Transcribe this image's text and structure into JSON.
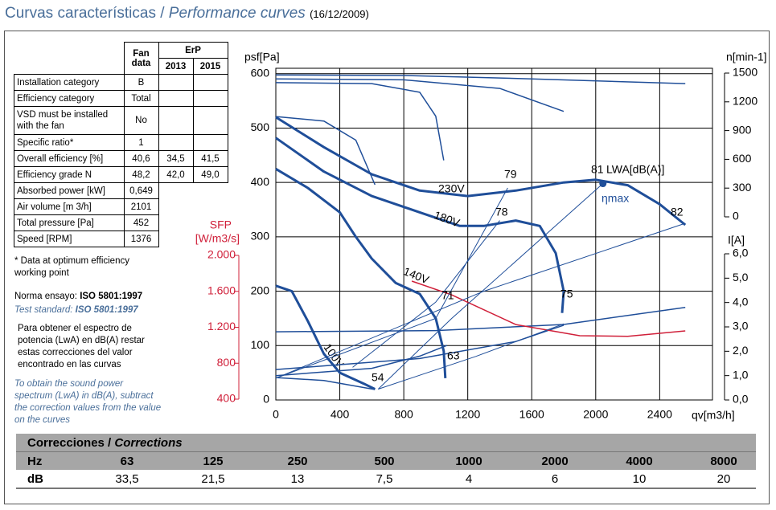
{
  "header": {
    "title_es": "Curvas características /",
    "title_en": "Performance curves",
    "date": "(16/12/2009)"
  },
  "spec_table": {
    "fan_data": "Fan data",
    "erp": "ErP",
    "year_2013": "2013",
    "year_2015": "2015",
    "rows": [
      [
        "Installation category",
        "B"
      ],
      [
        "Efficiency category",
        "Total"
      ],
      [
        "VSD must be installed with the fan",
        "No"
      ],
      [
        "Specific ratio*",
        "1"
      ],
      [
        "Overall efficiency [%]",
        "40,6",
        "34,5",
        "41,5"
      ],
      [
        "Efficiency grade N",
        "48,2",
        "42,0",
        "49,0"
      ],
      [
        "Absorbed power [kW]",
        "0,649"
      ],
      [
        "Air volume [m 3/h]",
        "2101"
      ],
      [
        "Total pressure [Pa]",
        "452"
      ],
      [
        "Speed [RPM]",
        "1376"
      ]
    ]
  },
  "notes": {
    "optimum": "* Data at optimum efficiency working point",
    "norma_label": "Norma ensayo:",
    "norma": "ISO 5801:1997",
    "standard_label": "Test standard:",
    "standard": "ISO 5801:1997",
    "es": "Para obtener el espectro de potencia (LwA) en dB(A) restar estas correcciones del valor encontrado en las curvas",
    "en": "To obtain the sound power spectrum (LwA) in dB(A), subtract the correction values from the value on the curves"
  },
  "corrections": {
    "title_es": "Correcciones /",
    "title_en": "Corrections",
    "hz_label": "Hz",
    "db_label": "dB",
    "hz": [
      "63",
      "125",
      "250",
      "500",
      "1000",
      "2000",
      "4000",
      "8000"
    ],
    "db": [
      "33,5",
      "21,5",
      "13",
      "7,5",
      "4",
      "6",
      "10",
      "20"
    ]
  },
  "chart_data": {
    "type": "line",
    "x_label": "qv[m3/h]",
    "y_label": "psf[Pa]",
    "xlim": [
      0,
      2730
    ],
    "xticks": [
      0,
      400,
      800,
      1200,
      1600,
      2000,
      2400
    ],
    "ylim": [
      0,
      610
    ],
    "yticks": [
      0,
      100,
      200,
      300,
      400,
      500,
      600
    ],
    "grid": true,
    "speed_axis": {
      "label": "n[min-1]",
      "lim": [
        0,
        1500
      ],
      "ticks": [
        0,
        300,
        600,
        900,
        1200,
        1500
      ]
    },
    "current_axis": {
      "label": "I[A]",
      "lim": [
        0,
        6
      ],
      "ticks": [
        {
          "value": 0,
          "label": "0,0"
        },
        {
          "value": 1,
          "label": "1,0"
        },
        {
          "value": 2,
          "label": "2,0"
        },
        {
          "value": 3,
          "label": "3,0"
        },
        {
          "value": 4,
          "label": "4,0"
        },
        {
          "value": 5,
          "label": "5,0"
        },
        {
          "value": 6,
          "label": "6,0"
        }
      ]
    },
    "sfp_axis": {
      "label": "SFP",
      "unit": "[W/m3/s]",
      "lim": [
        400,
        2000
      ],
      "ticks": [
        400,
        800,
        {
          "value": 1200,
          "label": "1.200"
        },
        {
          "value": 1600,
          "label": "1.600"
        },
        {
          "value": 2000,
          "label": "2.000"
        }
      ]
    },
    "series": [
      {
        "name": "230V",
        "color": "#1f4e99",
        "axis": "y",
        "width": 3,
        "x": [
          0,
          300,
          600,
          900,
          1200,
          1500,
          1800,
          2000,
          2200,
          2400,
          2560
        ],
        "values": [
          520,
          465,
          415,
          385,
          375,
          385,
          400,
          405,
          395,
          360,
          322
        ]
      },
      {
        "name": "180V",
        "color": "#1f4e99",
        "axis": "y",
        "width": 3,
        "x": [
          0,
          300,
          600,
          900,
          1150,
          1300,
          1500,
          1650,
          1750,
          1800,
          1790
        ],
        "values": [
          482,
          420,
          375,
          345,
          320,
          320,
          330,
          320,
          270,
          200,
          160
        ]
      },
      {
        "name": "140V",
        "color": "#1f4e99",
        "axis": "y",
        "width": 3,
        "x": [
          0,
          200,
          400,
          500,
          600,
          750,
          900,
          1000,
          1050,
          1060
        ],
        "values": [
          425,
          390,
          345,
          300,
          260,
          215,
          195,
          150,
          90,
          40
        ]
      },
      {
        "name": "100V",
        "color": "#1f4e99",
        "axis": "y",
        "width": 3,
        "x": [
          0,
          100,
          200,
          300,
          400,
          550,
          620
        ],
        "values": [
          210,
          200,
          145,
          85,
          50,
          30,
          20
        ]
      },
      {
        "color": "#1f4e99",
        "axis": "n",
        "width": 1.5,
        "x": [
          0,
          800,
          1600,
          2560
        ],
        "values": [
          1480,
          1475,
          1440,
          1390
        ]
      },
      {
        "color": "#1f4e99",
        "axis": "n",
        "width": 1.5,
        "x": [
          0,
          800,
          1400,
          1800
        ],
        "values": [
          1440,
          1430,
          1340,
          1100
        ]
      },
      {
        "color": "#1f4e99",
        "axis": "n",
        "width": 1.5,
        "x": [
          0,
          600,
          900,
          1000,
          1050
        ],
        "values": [
          1400,
          1390,
          1300,
          1050,
          590
        ]
      },
      {
        "color": "#1f4e99",
        "axis": "n",
        "width": 1.5,
        "x": [
          0,
          300,
          500,
          620
        ],
        "values": [
          1047,
          1000,
          800,
          335
        ]
      },
      {
        "color": "#1f4e99",
        "axis": "I",
        "width": 1.5,
        "x": [
          0,
          1000,
          1800,
          2560
        ],
        "values": [
          2.8,
          2.85,
          3.1,
          3.8
        ]
      },
      {
        "color": "#1f4e99",
        "axis": "I",
        "width": 1.5,
        "x": [
          0,
          900,
          1500,
          1800
        ],
        "values": [
          1.25,
          1.7,
          2.4,
          3.07
        ]
      },
      {
        "color": "#1f4e99",
        "axis": "I",
        "width": 1.5,
        "x": [
          0,
          600,
          900,
          1070
        ],
        "values": [
          1.0,
          1.3,
          1.8,
          2.24
        ]
      },
      {
        "color": "#1f4e99",
        "axis": "I",
        "width": 1.5,
        "x": [
          0,
          300,
          620
        ],
        "values": [
          0.92,
          0.8,
          0.43
        ]
      },
      {
        "color": "#d0203a",
        "axis": "sfp",
        "width": 1.5,
        "x": [
          850,
          1100,
          1500,
          1900,
          2200,
          2560
        ],
        "values": [
          1714,
          1560,
          1230,
          1106,
          1100,
          1160
        ]
      },
      {
        "color": "#1f4e99",
        "axis": "y",
        "width": 1,
        "x": [
          0,
          1000,
          1450
        ],
        "values": [
          40,
          150,
          390
        ]
      },
      {
        "color": "#1f4e99",
        "axis": "y",
        "width": 1,
        "x": [
          480,
          1000,
          1400
        ],
        "values": [
          60,
          180,
          330
        ]
      },
      {
        "color": "#1f4e99",
        "axis": "y",
        "width": 1,
        "x": [
          640,
          1100,
          2045
        ],
        "values": [
          20,
          150,
          398
        ]
      },
      {
        "color": "#1f4e99",
        "axis": "y",
        "width": 1,
        "x": [
          0,
          1300,
          2560
        ],
        "values": [
          40,
          200,
          325
        ]
      },
      {
        "color": "#1f4e99",
        "axis": "y",
        "width": 1,
        "x": [
          640,
          1250,
          1800
        ],
        "values": [
          20,
          80,
          140
        ]
      }
    ],
    "optimum_point": {
      "x": 2045,
      "y": 398
    },
    "annotations": [
      "54",
      "63",
      "71",
      "75",
      "78",
      "79",
      "81",
      "82",
      "LWA[dB(A)]",
      "ηmax"
    ]
  }
}
